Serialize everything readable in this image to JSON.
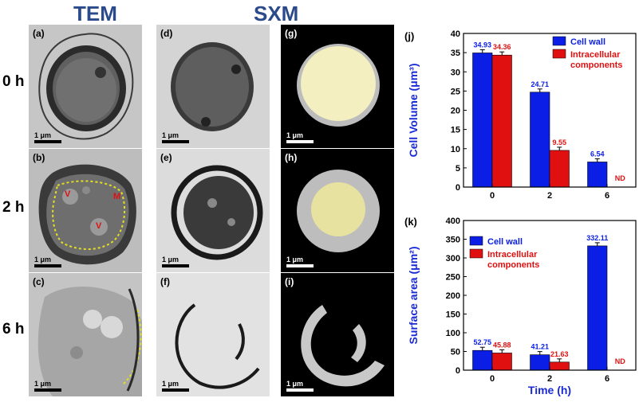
{
  "columns": {
    "tem": "TEM",
    "sxm": "SXM"
  },
  "rows": [
    "0 h",
    "2 h",
    "6 h"
  ],
  "panels": {
    "a": {
      "label": "(a)",
      "scale": "1 μm"
    },
    "b": {
      "label": "(b)",
      "scale": "1 μm",
      "annotations": [
        "V",
        "M",
        "V"
      ]
    },
    "c": {
      "label": "(c)",
      "scale": "1 μm"
    },
    "d": {
      "label": "(d)",
      "scale": "1 μm"
    },
    "e": {
      "label": "(e)",
      "scale": "1 μm"
    },
    "f": {
      "label": "(f)",
      "scale": "1 μm"
    },
    "g": {
      "label": "(g)",
      "scale": "1 μm"
    },
    "h": {
      "label": "(h)",
      "scale": "1 μm"
    },
    "i": {
      "label": "(i)",
      "scale": "1 μm"
    }
  },
  "colors": {
    "blue": "#0a1ee6",
    "red": "#e01010",
    "axis_blue": "#1a2ad6"
  },
  "chart_data": [
    {
      "panel": "(j)",
      "type": "bar",
      "categories": [
        "0",
        "2",
        "6"
      ],
      "xlabel": "Time (h)",
      "ylabel": "Cell Volume (μm³)",
      "ylim": [
        0,
        40
      ],
      "yticks": [
        0,
        5,
        10,
        15,
        20,
        25,
        30,
        35,
        40
      ],
      "series": [
        {
          "name": "Cell wall",
          "values": [
            34.93,
            24.71,
            6.54
          ],
          "labels": [
            "34.93",
            "24.71",
            "6.54"
          ]
        },
        {
          "name": "Intracellular components",
          "values": [
            34.36,
            9.55,
            null
          ],
          "labels": [
            "34.36",
            "9.55",
            "ND"
          ]
        }
      ],
      "legend": "top-right"
    },
    {
      "panel": "(k)",
      "type": "bar",
      "categories": [
        "0",
        "2",
        "6"
      ],
      "xlabel": "Time (h)",
      "ylabel": "Surface area (μm²)",
      "ylim": [
        0,
        400
      ],
      "yticks": [
        0,
        50,
        100,
        150,
        200,
        250,
        300,
        350,
        400
      ],
      "series": [
        {
          "name": "Cell wall",
          "values": [
            52.75,
            41.21,
            332.11
          ],
          "labels": [
            "52.75",
            "41.21",
            "332.11"
          ]
        },
        {
          "name": "Intracellular components",
          "values": [
            45.88,
            21.63,
            null
          ],
          "labels": [
            "45.88",
            "21.63",
            "ND"
          ]
        }
      ],
      "legend": "top-left"
    }
  ]
}
